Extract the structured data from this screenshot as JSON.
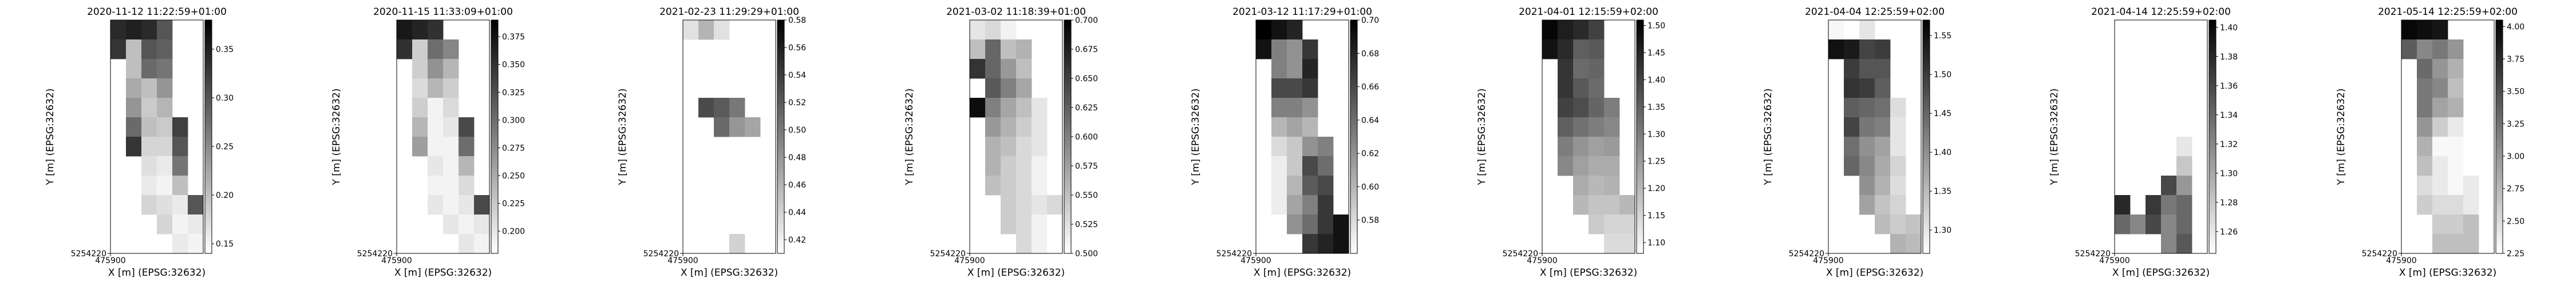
{
  "figure": {
    "colormap": "greys",
    "colors": {
      "low": "#ffffff",
      "high": "#000000",
      "frame": "#000000",
      "background": "#ffffff"
    },
    "x_tick_label": "475900",
    "y_tick_label": "5254220"
  },
  "chart_data": [
    {
      "type": "heatmap",
      "title": "2020-11-12 11:22:59+01:00",
      "xlabel": "X [m] (EPSG:32632)",
      "ylabel": "Y [m] (EPSG:32632)",
      "x_ticks": [
        "475900"
      ],
      "y_ticks": [
        "5254220"
      ],
      "colorbar": {
        "min": 0.14,
        "max": 0.38,
        "ticks": [
          0.15,
          0.2,
          0.25,
          0.3,
          0.35
        ]
      },
      "grid": [
        [
          0.34,
          0.35,
          0.34,
          0.3,
          null,
          null
        ],
        [
          0.33,
          0.2,
          0.3,
          0.29,
          null,
          null
        ],
        [
          null,
          0.2,
          0.28,
          0.27,
          null,
          null
        ],
        [
          null,
          0.22,
          0.2,
          0.24,
          null,
          null
        ],
        [
          null,
          0.24,
          0.19,
          0.21,
          null,
          null
        ],
        [
          null,
          0.28,
          0.2,
          0.19,
          0.32,
          null
        ],
        [
          null,
          0.33,
          0.18,
          0.18,
          0.3,
          null
        ],
        [
          null,
          null,
          0.17,
          0.16,
          0.27,
          null
        ],
        [
          null,
          null,
          0.16,
          0.15,
          0.2,
          null
        ],
        [
          null,
          null,
          0.18,
          0.17,
          0.16,
          0.3
        ],
        [
          null,
          null,
          null,
          0.18,
          0.15,
          0.16
        ],
        [
          null,
          null,
          null,
          null,
          0.16,
          0.15
        ]
      ]
    },
    {
      "type": "heatmap",
      "title": "2020-11-15 11:33:09+01:00",
      "xlabel": "X [m] (EPSG:32632)",
      "ylabel": "Y [m] (EPSG:32632)",
      "x_ticks": [
        "475900"
      ],
      "y_ticks": [
        "5254220"
      ],
      "colorbar": {
        "min": 0.18,
        "max": 0.39,
        "ticks": [
          0.2,
          0.225,
          0.25,
          0.275,
          0.3,
          0.325,
          0.35,
          0.375
        ]
      },
      "grid": [
        [
          0.37,
          0.36,
          0.35,
          null,
          null,
          null
        ],
        [
          0.35,
          0.22,
          0.3,
          0.28,
          null,
          null
        ],
        [
          null,
          0.22,
          0.27,
          0.24,
          null,
          null
        ],
        [
          null,
          0.21,
          0.24,
          0.22,
          null,
          null
        ],
        [
          null,
          0.22,
          0.19,
          0.21,
          null,
          null
        ],
        [
          null,
          0.24,
          0.19,
          0.2,
          0.33,
          null
        ],
        [
          null,
          0.26,
          0.19,
          0.19,
          0.3,
          null
        ],
        [
          null,
          null,
          0.2,
          0.19,
          0.24,
          null
        ],
        [
          null,
          null,
          0.19,
          0.19,
          0.21,
          null
        ],
        [
          null,
          null,
          0.2,
          0.19,
          0.2,
          0.33
        ],
        [
          null,
          null,
          null,
          0.2,
          0.19,
          0.2
        ],
        [
          null,
          null,
          null,
          null,
          0.2,
          0.19
        ]
      ]
    },
    {
      "type": "heatmap",
      "title": "2021-02-23 11:29:29+01:00",
      "xlabel": "X [m] (EPSG:32632)",
      "ylabel": "Y [m] (EPSG:32632)",
      "x_ticks": [
        "475900"
      ],
      "y_ticks": [
        "5254220"
      ],
      "colorbar": {
        "min": 0.41,
        "max": 0.58,
        "ticks": [
          0.42,
          0.44,
          0.46,
          0.48,
          0.5,
          0.52,
          0.54,
          0.56,
          0.58
        ]
      },
      "grid": [
        [
          0.43,
          0.46,
          0.43,
          null,
          null,
          null
        ],
        [
          null,
          null,
          null,
          null,
          null,
          null
        ],
        [
          null,
          null,
          null,
          null,
          null,
          null
        ],
        [
          null,
          null,
          null,
          null,
          null,
          null
        ],
        [
          null,
          0.53,
          0.52,
          0.5,
          null,
          null
        ],
        [
          null,
          null,
          0.51,
          0.48,
          0.47,
          null
        ],
        [
          null,
          null,
          null,
          null,
          null,
          null
        ],
        [
          null,
          null,
          null,
          null,
          null,
          null
        ],
        [
          null,
          null,
          null,
          null,
          null,
          null
        ],
        [
          null,
          null,
          null,
          null,
          null,
          null
        ],
        [
          null,
          null,
          null,
          null,
          null,
          null
        ],
        [
          null,
          null,
          null,
          0.44,
          null,
          null
        ]
      ]
    },
    {
      "type": "heatmap",
      "title": "2021-03-02 11:18:39+01:00",
      "xlabel": "X [m] (EPSG:32632)",
      "ylabel": "Y [m] (EPSG:32632)",
      "x_ticks": [
        "475900"
      ],
      "y_ticks": [
        "5254220"
      ],
      "colorbar": {
        "min": 0.5,
        "max": 0.7,
        "ticks": [
          0.5,
          0.525,
          0.55,
          0.575,
          0.6,
          0.625,
          0.65,
          0.675,
          0.7
        ]
      },
      "grid": [
        [
          0.52,
          0.53,
          0.51,
          null,
          null,
          null
        ],
        [
          0.55,
          0.62,
          0.55,
          0.56,
          null,
          null
        ],
        [
          0.66,
          0.62,
          0.58,
          0.55,
          null,
          null
        ],
        [
          null,
          0.63,
          0.6,
          0.57,
          null,
          null
        ],
        [
          0.69,
          0.6,
          0.57,
          0.55,
          0.52,
          null
        ],
        [
          null,
          0.58,
          0.56,
          0.54,
          0.52,
          null
        ],
        [
          null,
          0.56,
          0.55,
          0.53,
          0.52,
          null
        ],
        [
          null,
          0.56,
          0.54,
          0.53,
          0.51,
          null
        ],
        [
          null,
          0.55,
          0.54,
          0.53,
          0.51,
          null
        ],
        [
          null,
          null,
          0.54,
          0.53,
          0.52,
          0.53
        ],
        [
          null,
          null,
          0.54,
          0.53,
          0.51,
          0.5
        ],
        [
          null,
          null,
          null,
          0.53,
          0.51,
          0.5
        ]
      ]
    },
    {
      "type": "heatmap",
      "title": "2021-03-12 11:17:29+01:00",
      "xlabel": "X [m] (EPSG:32632)",
      "ylabel": "Y [m] (EPSG:32632)",
      "x_ticks": [
        "475900"
      ],
      "y_ticks": [
        "5254220"
      ],
      "colorbar": {
        "min": 0.56,
        "max": 0.7,
        "ticks": [
          0.58,
          0.6,
          0.62,
          0.64,
          0.66,
          0.68,
          0.7
        ]
      },
      "grid": [
        [
          0.7,
          0.69,
          0.68,
          null,
          null,
          null
        ],
        [
          0.69,
          0.63,
          0.62,
          0.67,
          null,
          null
        ],
        [
          null,
          0.63,
          0.62,
          0.68,
          null,
          null
        ],
        [
          null,
          0.66,
          0.66,
          0.67,
          null,
          null
        ],
        [
          null,
          0.63,
          0.63,
          0.62,
          null,
          null
        ],
        [
          null,
          0.6,
          0.61,
          0.6,
          null,
          null
        ],
        [
          null,
          0.58,
          0.59,
          0.62,
          0.63,
          null
        ],
        [
          null,
          0.57,
          0.59,
          0.66,
          0.64,
          null
        ],
        [
          null,
          0.57,
          0.6,
          0.65,
          0.66,
          null
        ],
        [
          null,
          0.57,
          0.61,
          0.63,
          0.67,
          null
        ],
        [
          null,
          null,
          0.62,
          0.64,
          0.67,
          0.69
        ],
        [
          null,
          null,
          null,
          0.67,
          0.68,
          0.69
        ]
      ]
    },
    {
      "type": "heatmap",
      "title": "2021-04-01 12:15:59+02:00",
      "xlabel": "X [m] (EPSG:32632)",
      "ylabel": "Y [m] (EPSG:32632)",
      "x_ticks": [
        "475900"
      ],
      "y_ticks": [
        "5254220"
      ],
      "colorbar": {
        "min": 1.08,
        "max": 1.51,
        "ticks": [
          1.1,
          1.15,
          1.2,
          1.25,
          1.3,
          1.35,
          1.4,
          1.45,
          1.5
        ]
      },
      "grid": [
        [
          1.5,
          1.46,
          1.44,
          1.4,
          null,
          null
        ],
        [
          1.48,
          1.44,
          1.35,
          1.36,
          null,
          null
        ],
        [
          null,
          1.42,
          1.33,
          1.34,
          null,
          null
        ],
        [
          null,
          1.42,
          1.36,
          1.33,
          null,
          null
        ],
        [
          null,
          1.4,
          1.38,
          1.34,
          1.3,
          null
        ],
        [
          null,
          1.35,
          1.32,
          1.3,
          1.28,
          null
        ],
        [
          null,
          1.3,
          1.26,
          1.24,
          1.25,
          null
        ],
        [
          null,
          1.28,
          1.24,
          1.22,
          1.22,
          null
        ],
        [
          null,
          null,
          1.22,
          1.2,
          1.21,
          null
        ],
        [
          null,
          null,
          1.2,
          1.18,
          1.18,
          1.2
        ],
        [
          null,
          null,
          null,
          1.17,
          1.15,
          1.15
        ],
        [
          null,
          null,
          null,
          null,
          1.14,
          1.14
        ]
      ]
    },
    {
      "type": "heatmap",
      "title": "2021-04-04 12:25:59+02:00",
      "xlabel": "X [m] (EPSG:32632)",
      "ylabel": "Y [m] (EPSG:32632)",
      "x_ticks": [
        "475900"
      ],
      "y_ticks": [
        "5254220"
      ],
      "colorbar": {
        "min": 1.27,
        "max": 1.57,
        "ticks": [
          1.3,
          1.35,
          1.4,
          1.45,
          1.5,
          1.55
        ]
      },
      "grid": [
        [
          1.28,
          1.27,
          1.3,
          null,
          null,
          null
        ],
        [
          1.55,
          1.54,
          1.49,
          1.5,
          null,
          null
        ],
        [
          null,
          1.5,
          1.47,
          1.47,
          null,
          null
        ],
        [
          null,
          1.51,
          1.5,
          1.46,
          null,
          null
        ],
        [
          null,
          1.46,
          1.45,
          1.44,
          1.31,
          null
        ],
        [
          null,
          1.49,
          1.43,
          1.42,
          1.3,
          null
        ],
        [
          null,
          1.44,
          1.4,
          1.38,
          1.3,
          null
        ],
        [
          null,
          1.45,
          1.41,
          1.37,
          1.32,
          null
        ],
        [
          null,
          null,
          1.4,
          1.36,
          1.31,
          null
        ],
        [
          null,
          null,
          1.38,
          1.34,
          1.32,
          null
        ],
        [
          null,
          null,
          null,
          1.35,
          1.33,
          1.34
        ],
        [
          null,
          null,
          null,
          null,
          1.36,
          1.35
        ]
      ]
    },
    {
      "type": "heatmap",
      "title": "2021-04-14 12:25:59+02:00",
      "xlabel": "X [m] (EPSG:32632)",
      "ylabel": "Y [m] (EPSG:32632)",
      "x_ticks": [
        "475900"
      ],
      "y_ticks": [
        "5254220"
      ],
      "colorbar": {
        "min": 1.245,
        "max": 1.405,
        "ticks": [
          1.26,
          1.28,
          1.3,
          1.32,
          1.34,
          1.36,
          1.38,
          1.4
        ]
      },
      "grid": [
        [
          null,
          null,
          null,
          null,
          null,
          null
        ],
        [
          null,
          null,
          null,
          null,
          null,
          null
        ],
        [
          null,
          null,
          null,
          null,
          null,
          null
        ],
        [
          null,
          null,
          null,
          null,
          null,
          null
        ],
        [
          null,
          null,
          null,
          null,
          null,
          null
        ],
        [
          null,
          null,
          null,
          null,
          null,
          null
        ],
        [
          null,
          null,
          null,
          null,
          1.26,
          null
        ],
        [
          null,
          null,
          null,
          null,
          1.28,
          null
        ],
        [
          null,
          null,
          null,
          1.36,
          1.31,
          null
        ],
        [
          1.38,
          null,
          1.37,
          1.33,
          1.34,
          null
        ],
        [
          1.34,
          1.32,
          1.36,
          1.32,
          1.34,
          null
        ],
        [
          null,
          null,
          null,
          1.32,
          1.35,
          null
        ]
      ]
    },
    {
      "type": "heatmap",
      "title": "2021-05-14 12:25:59+02:00",
      "xlabel": "X [m] (EPSG:32632)",
      "ylabel": "Y [m] (EPSG:32632)",
      "x_ticks": [
        "475900"
      ],
      "y_ticks": [
        "5254220"
      ],
      "colorbar": {
        "min": 2.25,
        "max": 4.05,
        "ticks": [
          2.25,
          2.5,
          2.75,
          3.0,
          3.25,
          3.5,
          3.75,
          4.0
        ]
      },
      "grid": [
        [
          4.0,
          3.95,
          3.9,
          null,
          null,
          null
        ],
        [
          3.4,
          3.1,
          3.2,
          3.0,
          null,
          null
        ],
        [
          null,
          3.3,
          3.0,
          2.8,
          null,
          null
        ],
        [
          null,
          3.2,
          3.1,
          2.7,
          null,
          null
        ],
        [
          null,
          3.2,
          2.9,
          2.8,
          null,
          null
        ],
        [
          null,
          3.0,
          2.6,
          2.4,
          null,
          null
        ],
        [
          null,
          2.8,
          2.3,
          2.3,
          null,
          null
        ],
        [
          null,
          2.7,
          2.4,
          2.3,
          null,
          null
        ],
        [
          null,
          2.5,
          2.4,
          2.3,
          2.4,
          null
        ],
        [
          null,
          2.6,
          2.5,
          2.5,
          2.4,
          null
        ],
        [
          null,
          null,
          2.6,
          2.6,
          2.7,
          null
        ],
        [
          null,
          null,
          2.7,
          2.7,
          2.7,
          null
        ]
      ]
    }
  ]
}
